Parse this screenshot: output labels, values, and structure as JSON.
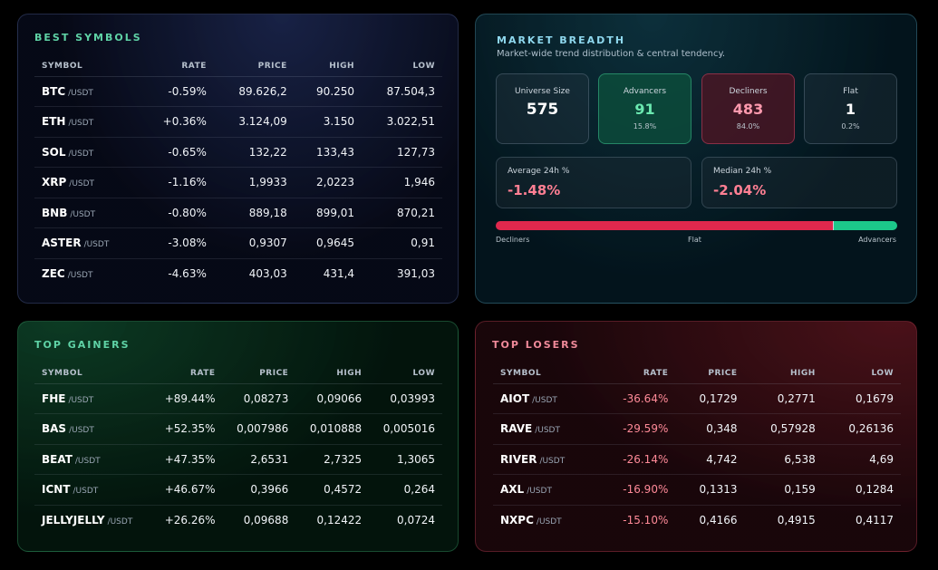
{
  "best": {
    "title": "BEST SYMBOLS",
    "columns": [
      "SYMBOL",
      "RATE",
      "PRICE",
      "HIGH",
      "LOW"
    ],
    "rows": [
      {
        "symbol": "BTC",
        "quote": "/USDT",
        "rate": "-0.59%",
        "price": "89.626,2",
        "high": "90.250",
        "low": "87.504,3"
      },
      {
        "symbol": "ETH",
        "quote": "/USDT",
        "rate": "+0.36%",
        "price": "3.124,09",
        "high": "3.150",
        "low": "3.022,51"
      },
      {
        "symbol": "SOL",
        "quote": "/USDT",
        "rate": "-0.65%",
        "price": "132,22",
        "high": "133,43",
        "low": "127,73"
      },
      {
        "symbol": "XRP",
        "quote": "/USDT",
        "rate": "-1.16%",
        "price": "1,9933",
        "high": "2,0223",
        "low": "1,946"
      },
      {
        "symbol": "BNB",
        "quote": "/USDT",
        "rate": "-0.80%",
        "price": "889,18",
        "high": "899,01",
        "low": "870,21"
      },
      {
        "symbol": "ASTER",
        "quote": "/USDT",
        "rate": "-3.08%",
        "price": "0,9307",
        "high": "0,9645",
        "low": "0,91"
      },
      {
        "symbol": "ZEC",
        "quote": "/USDT",
        "rate": "-4.63%",
        "price": "403,03",
        "high": "431,4",
        "low": "391,03"
      }
    ]
  },
  "breadth": {
    "title": "MARKET BREADTH",
    "subtitle": "Market-wide trend distribution & central tendency.",
    "universe": {
      "label": "Universe Size",
      "value": "575"
    },
    "advancers": {
      "label": "Advancers",
      "value": "91",
      "pct": "15.8%"
    },
    "decliners": {
      "label": "Decliners",
      "value": "483",
      "pct": "84.0%"
    },
    "flat": {
      "label": "Flat",
      "value": "1",
      "pct": "0.2%"
    },
    "average": {
      "label": "Average 24h %",
      "value": "-1.48%"
    },
    "median": {
      "label": "Median 24h %",
      "value": "-2.04%"
    },
    "bar": {
      "decliners_pct": 84.0,
      "flat_pct": 0.2,
      "advancers_pct": 15.8,
      "label_decliners": "Decliners",
      "label_flat": "Flat",
      "label_advancers": "Advancers"
    }
  },
  "gainers": {
    "title": "TOP GAINERS",
    "columns": [
      "SYMBOL",
      "RATE",
      "PRICE",
      "HIGH",
      "LOW"
    ],
    "rows": [
      {
        "symbol": "FHE",
        "quote": "/USDT",
        "rate": "+89.44%",
        "price": "0,08273",
        "high": "0,09066",
        "low": "0,03993"
      },
      {
        "symbol": "BAS",
        "quote": "/USDT",
        "rate": "+52.35%",
        "price": "0,007986",
        "high": "0,010888",
        "low": "0,005016"
      },
      {
        "symbol": "BEAT",
        "quote": "/USDT",
        "rate": "+47.35%",
        "price": "2,6531",
        "high": "2,7325",
        "low": "1,3065"
      },
      {
        "symbol": "ICNT",
        "quote": "/USDT",
        "rate": "+46.67%",
        "price": "0,3966",
        "high": "0,4572",
        "low": "0,264"
      },
      {
        "symbol": "JELLYJELLY",
        "quote": "/USDT",
        "rate": "+26.26%",
        "price": "0,09688",
        "high": "0,12422",
        "low": "0,0724"
      }
    ]
  },
  "losers": {
    "title": "TOP LOSERS",
    "columns": [
      "SYMBOL",
      "RATE",
      "PRICE",
      "HIGH",
      "LOW"
    ],
    "rows": [
      {
        "symbol": "AIOT",
        "quote": "/USDT",
        "rate": "-36.64%",
        "price": "0,1729",
        "high": "0,2771",
        "low": "0,1679"
      },
      {
        "symbol": "RAVE",
        "quote": "/USDT",
        "rate": "-29.59%",
        "price": "0,348",
        "high": "0,57928",
        "low": "0,26136"
      },
      {
        "symbol": "RIVER",
        "quote": "/USDT",
        "rate": "-26.14%",
        "price": "4,742",
        "high": "6,538",
        "low": "4,69"
      },
      {
        "symbol": "AXL",
        "quote": "/USDT",
        "rate": "-16.90%",
        "price": "0,1313",
        "high": "0,159",
        "low": "0,1284"
      },
      {
        "symbol": "NXPC",
        "quote": "/USDT",
        "rate": "-15.10%",
        "price": "0,4166",
        "high": "0,4915",
        "low": "0,4117"
      }
    ]
  },
  "colors": {
    "positive": "#3ed98a",
    "negative": "#ff5c73",
    "accent_green": "#5fd3a6",
    "accent_cyan": "#8fd8ee",
    "accent_red": "#f08a9a"
  }
}
